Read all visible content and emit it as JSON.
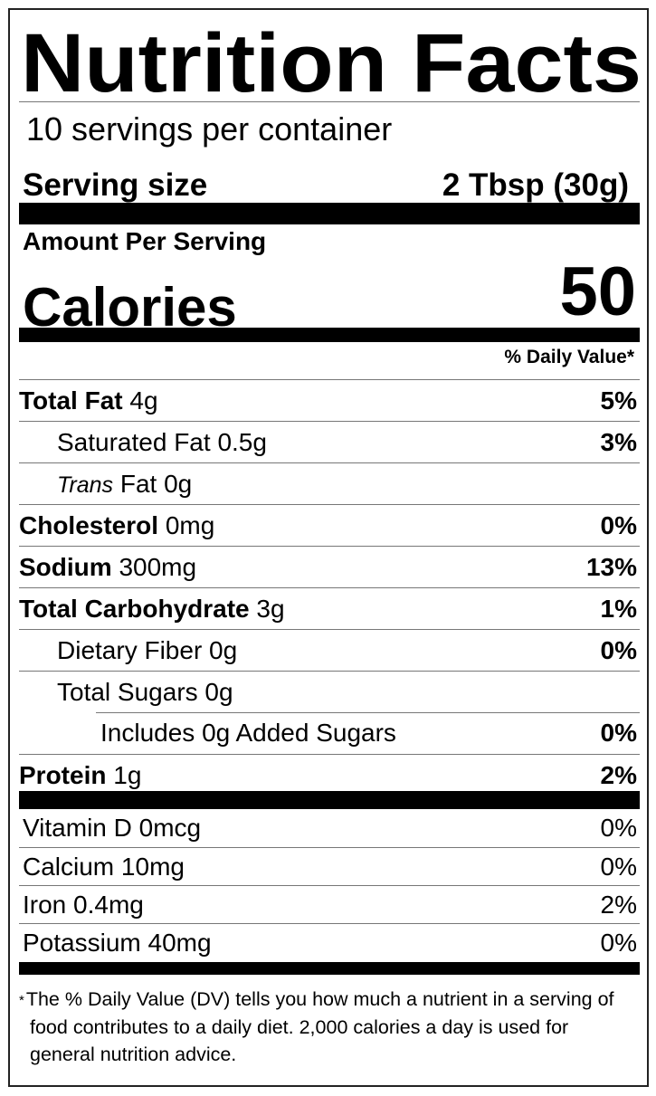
{
  "title": "Nutrition Facts",
  "servings_per_container": "10 servings per container",
  "serving_size": {
    "label": "Serving size",
    "value": "2 Tbsp (30g)"
  },
  "amount_per_serving": "Amount Per Serving",
  "calories": {
    "label": "Calories",
    "value": "50"
  },
  "daily_value_header": "% Daily Value*",
  "nutrients": [
    {
      "name": "Total Fat",
      "amount": "4g",
      "dv": "5%"
    },
    {
      "name": "Saturated Fat",
      "amount": "0.5g",
      "dv": "3%"
    },
    {
      "name_italic": "Trans",
      "name": "Fat",
      "amount": "0g",
      "dv": ""
    },
    {
      "name": "Cholesterol",
      "amount": "0mg",
      "dv": "0%"
    },
    {
      "name": "Sodium",
      "amount": "300mg",
      "dv": "13%"
    },
    {
      "name": "Total Carbohydrate",
      "amount": "3g",
      "dv": "1%"
    },
    {
      "name": "Dietary Fiber",
      "amount": "0g",
      "dv": "0%"
    },
    {
      "name": "Total Sugars",
      "amount": "0g",
      "dv": ""
    },
    {
      "name": "Includes 0g Added Sugars",
      "amount": "",
      "dv": "0%"
    },
    {
      "name": "Protein",
      "amount": "1g",
      "dv": "2%"
    }
  ],
  "vitamins": [
    {
      "name": "Vitamin D",
      "amount": "0mcg",
      "dv": "0%"
    },
    {
      "name": "Calcium",
      "amount": "10mg",
      "dv": "0%"
    },
    {
      "name": "Iron",
      "amount": "0.4mg",
      "dv": "2%"
    },
    {
      "name": "Potassium",
      "amount": "40mg",
      "dv": "0%"
    }
  ],
  "footnote": {
    "asterisk": "*",
    "text": "The % Daily Value (DV) tells you how much a nutrient in a serving of food contributes to a daily diet. 2,000 calories a day is used for general nutrition advice."
  }
}
